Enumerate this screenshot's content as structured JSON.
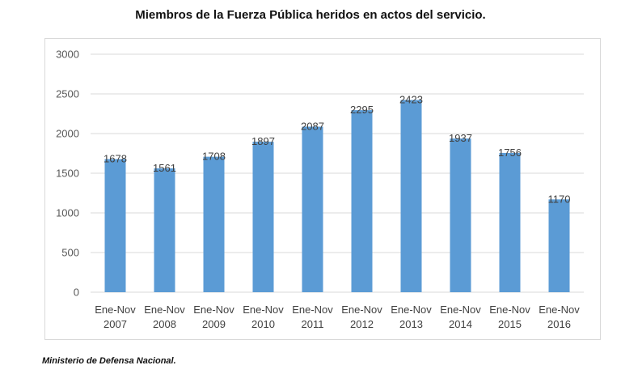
{
  "chart_data": {
    "type": "bar",
    "title": "Miembros de la Fuerza Pública heridos en actos del servicio.",
    "categories": [
      [
        "Ene-Nov",
        "2007"
      ],
      [
        "Ene-Nov",
        "2008"
      ],
      [
        "Ene-Nov",
        "2009"
      ],
      [
        "Ene-Nov",
        "2010"
      ],
      [
        "Ene-Nov",
        "2011"
      ],
      [
        "Ene-Nov",
        "2012"
      ],
      [
        "Ene-Nov",
        "2013"
      ],
      [
        "Ene-Nov",
        "2014"
      ],
      [
        "Ene-Nov",
        "2015"
      ],
      [
        "Ene-Nov",
        "2016"
      ]
    ],
    "values": [
      1678,
      1561,
      1708,
      1897,
      2087,
      2295,
      2423,
      1937,
      1756,
      1170
    ],
    "ylim": [
      0,
      3000
    ],
    "yticks": [
      0,
      500,
      1000,
      1500,
      2000,
      2500,
      3000
    ],
    "xlabel": "",
    "ylabel": "",
    "grid": true,
    "legend": "none",
    "bar_color": "#5b9bd5",
    "grid_color": "#d9d9d9"
  },
  "source": "Ministerio de Defensa Nacional."
}
